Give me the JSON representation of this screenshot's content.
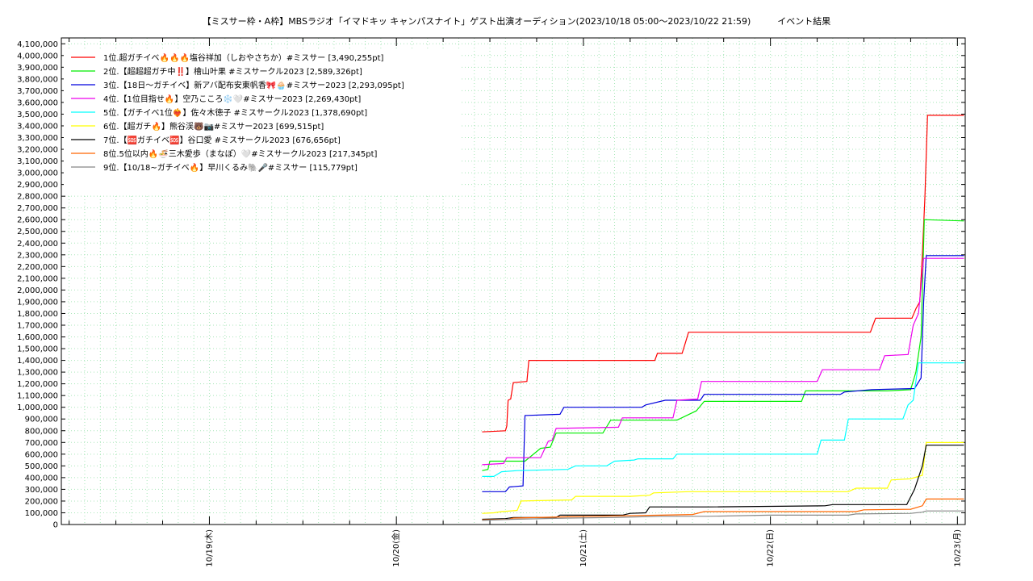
{
  "chart_data": {
    "type": "line",
    "title": "【ミスサー枠・A枠】MBSラジオ「イマドキッ キャンパスナイト」ゲスト出演オーディション(2023/10/18 05:00〜2023/10/22 21:59)　　　イベント結果",
    "xlabel": "",
    "ylabel": "",
    "x_ticks": [
      "10/19(木)",
      "10/20(金)",
      "10/21(土)",
      "10/22(日)",
      "10/23(月)"
    ],
    "x_range": [
      "2023-10-18 05:00",
      "2023-10-23 01:00"
    ],
    "ylim": [
      0,
      4150000
    ],
    "y_ticks": [
      0,
      100000,
      200000,
      300000,
      400000,
      500000,
      600000,
      700000,
      800000,
      900000,
      1000000,
      1100000,
      1200000,
      1300000,
      1400000,
      1500000,
      1600000,
      1700000,
      1800000,
      1900000,
      2000000,
      2100000,
      2200000,
      2300000,
      2400000,
      2500000,
      2600000,
      2700000,
      2800000,
      2900000,
      3000000,
      3100000,
      3200000,
      3300000,
      3400000,
      3500000,
      3600000,
      3700000,
      3800000,
      3900000,
      4000000,
      4100000
    ],
    "y_tick_labels": [
      "0",
      "100,000",
      "200,000",
      "300,000",
      "400,000",
      "500,000",
      "600,000",
      "700,000",
      "800,000",
      "900,000",
      "1,000,000",
      "1,100,000",
      "1,200,000",
      "1,300,000",
      "1,400,000",
      "1,500,000",
      "1,600,000",
      "1,700,000",
      "1,800,000",
      "1,900,000",
      "2,000,000",
      "2,100,000",
      "2,200,000",
      "2,300,000",
      "2,400,000",
      "2,500,000",
      "2,600,000",
      "2,700,000",
      "2,800,000",
      "2,900,000",
      "3,000,000",
      "3,100,000",
      "3,200,000",
      "3,300,000",
      "3,400,000",
      "3,500,000",
      "3,600,000",
      "3,700,000",
      "3,800,000",
      "3,900,000",
      "4,000,000",
      "4,100,000"
    ],
    "grid": true,
    "legend_position": "top-left",
    "series": [
      {
        "name": "1位.超ガチイベ🔥🔥🔥塩谷祥加（しおやさちか）#ミスサー [3,490,255pt]",
        "color": "#ff0000",
        "points": [
          [
            "2023-10-20 11:00",
            790000
          ],
          [
            "2023-10-20 14:00",
            800000
          ],
          [
            "2023-10-20 14:10",
            840000
          ],
          [
            "2023-10-20 14:20",
            1060000
          ],
          [
            "2023-10-20 14:40",
            1070000
          ],
          [
            "2023-10-20 15:00",
            1210000
          ],
          [
            "2023-10-20 16:45",
            1220000
          ],
          [
            "2023-10-20 17:00",
            1400000
          ],
          [
            "2023-10-21 04:00",
            1400000
          ],
          [
            "2023-10-21 09:10",
            1400000
          ],
          [
            "2023-10-21 09:30",
            1460000
          ],
          [
            "2023-10-21 12:40",
            1460000
          ],
          [
            "2023-10-21 13:00",
            1530000
          ],
          [
            "2023-10-21 13:30",
            1640000
          ],
          [
            "2023-10-22 12:50",
            1640000
          ],
          [
            "2023-10-22 13:10",
            1700000
          ],
          [
            "2023-10-22 13:30",
            1760000
          ],
          [
            "2023-10-22 18:10",
            1760000
          ],
          [
            "2023-10-22 18:40",
            1840000
          ],
          [
            "2023-10-22 19:10",
            1900000
          ],
          [
            "2023-10-22 19:30",
            2300000
          ],
          [
            "2023-10-22 19:50",
            2800000
          ],
          [
            "2023-10-22 20:10",
            3490255
          ],
          [
            "2023-10-23 00:50",
            3490255
          ]
        ]
      },
      {
        "name": "2位.【超超超ガチ中‼️】檜山叶果 #ミスサークル2023 [2,589,326pt]",
        "color": "#00ee00",
        "points": [
          [
            "2023-10-20 11:00",
            460000
          ],
          [
            "2023-10-20 11:45",
            470000
          ],
          [
            "2023-10-20 12:00",
            540000
          ],
          [
            "2023-10-20 16:30",
            540000
          ],
          [
            "2023-10-20 18:30",
            650000
          ],
          [
            "2023-10-20 19:45",
            660000
          ],
          [
            "2023-10-20 20:30",
            780000
          ],
          [
            "2023-10-21 02:30",
            780000
          ],
          [
            "2023-10-21 03:30",
            890000
          ],
          [
            "2023-10-21 12:00",
            890000
          ],
          [
            "2023-10-21 14:30",
            970000
          ],
          [
            "2023-10-21 15:30",
            1050000
          ],
          [
            "2023-10-22 04:00",
            1050000
          ],
          [
            "2023-10-22 04:30",
            1140000
          ],
          [
            "2023-10-22 15:00",
            1140000
          ],
          [
            "2023-10-22 18:00",
            1150000
          ],
          [
            "2023-10-22 18:40",
            1300000
          ],
          [
            "2023-10-22 19:20",
            1600000
          ],
          [
            "2023-10-22 19:45",
            2600000
          ],
          [
            "2023-10-23 00:50",
            2589326
          ]
        ]
      },
      {
        "name": "3位.【18日〜ガチイベ】新アバ配布安東帆香🎀🧁#ミスサー2023 [2,293,095pt]",
        "color": "#0000dd",
        "points": [
          [
            "2023-10-20 11:00",
            280000
          ],
          [
            "2023-10-20 14:00",
            280000
          ],
          [
            "2023-10-20 14:30",
            320000
          ],
          [
            "2023-10-20 16:15",
            330000
          ],
          [
            "2023-10-20 16:30",
            930000
          ],
          [
            "2023-10-20 21:00",
            940000
          ],
          [
            "2023-10-20 21:30",
            1000000
          ],
          [
            "2023-10-21 07:30",
            1000000
          ],
          [
            "2023-10-21 08:00",
            1020000
          ],
          [
            "2023-10-21 10:30",
            1060000
          ],
          [
            "2023-10-21 15:00",
            1060000
          ],
          [
            "2023-10-21 15:30",
            1110000
          ],
          [
            "2023-10-22 09:00",
            1110000
          ],
          [
            "2023-10-22 09:30",
            1130000
          ],
          [
            "2023-10-22 13:00",
            1150000
          ],
          [
            "2023-10-22 18:30",
            1160000
          ],
          [
            "2023-10-22 19:20",
            1250000
          ],
          [
            "2023-10-22 19:40",
            1900000
          ],
          [
            "2023-10-22 20:00",
            2293095
          ],
          [
            "2023-10-23 00:50",
            2293095
          ]
        ]
      },
      {
        "name": "4位.【1位目指せ🔥】空乃こころ❄️🤍#ミスサー2023 [2,269,430pt]",
        "color": "#ee00ee",
        "points": [
          [
            "2023-10-20 11:00",
            510000
          ],
          [
            "2023-10-20 13:45",
            520000
          ],
          [
            "2023-10-20 14:10",
            570000
          ],
          [
            "2023-10-20 18:30",
            570000
          ],
          [
            "2023-10-20 19:30",
            710000
          ],
          [
            "2023-10-20 20:00",
            720000
          ],
          [
            "2023-10-20 20:30",
            820000
          ],
          [
            "2023-10-21 04:30",
            830000
          ],
          [
            "2023-10-21 05:00",
            910000
          ],
          [
            "2023-10-21 11:30",
            910000
          ],
          [
            "2023-10-21 12:00",
            1060000
          ],
          [
            "2023-10-21 14:40",
            1070000
          ],
          [
            "2023-10-21 15:10",
            1220000
          ],
          [
            "2023-10-22 06:00",
            1220000
          ],
          [
            "2023-10-22 06:40",
            1320000
          ],
          [
            "2023-10-22 14:00",
            1320000
          ],
          [
            "2023-10-22 14:20",
            1380000
          ],
          [
            "2023-10-22 14:40",
            1440000
          ],
          [
            "2023-10-22 17:40",
            1450000
          ],
          [
            "2023-10-22 18:20",
            1700000
          ],
          [
            "2023-10-22 19:00",
            1800000
          ],
          [
            "2023-10-22 19:40",
            2269430
          ],
          [
            "2023-10-23 00:50",
            2269430
          ]
        ]
      },
      {
        "name": "5位.【ガチイベ1位❤️‍🔥】佐々木徳子 #ミスサークル2023 [1,378,690pt]",
        "color": "#00ffff",
        "points": [
          [
            "2023-10-20 11:00",
            410000
          ],
          [
            "2023-10-20 12:30",
            410000
          ],
          [
            "2023-10-20 13:30",
            450000
          ],
          [
            "2023-10-20 15:30",
            460000
          ],
          [
            "2023-10-20 22:00",
            470000
          ],
          [
            "2023-10-20 23:00",
            500000
          ],
          [
            "2023-10-21 03:00",
            500000
          ],
          [
            "2023-10-21 04:00",
            540000
          ],
          [
            "2023-10-21 06:30",
            550000
          ],
          [
            "2023-10-21 07:00",
            560000
          ],
          [
            "2023-10-21 11:30",
            560000
          ],
          [
            "2023-10-21 12:00",
            600000
          ],
          [
            "2023-10-22 06:00",
            600000
          ],
          [
            "2023-10-22 06:30",
            720000
          ],
          [
            "2023-10-22 09:30",
            720000
          ],
          [
            "2023-10-22 10:00",
            900000
          ],
          [
            "2023-10-22 17:00",
            900000
          ],
          [
            "2023-10-22 17:40",
            1020000
          ],
          [
            "2023-10-22 18:20",
            1060000
          ],
          [
            "2023-10-22 19:00",
            1378690
          ],
          [
            "2023-10-23 00:50",
            1378690
          ]
        ]
      },
      {
        "name": "6位.【超ガチ🔥】熊谷渓🐻📷#ミスサー2023 [699,515pt]",
        "color": "#ffff00",
        "points": [
          [
            "2023-10-20 11:00",
            95000
          ],
          [
            "2023-10-20 12:30",
            100000
          ],
          [
            "2023-10-20 13:30",
            110000
          ],
          [
            "2023-10-20 15:30",
            120000
          ],
          [
            "2023-10-20 16:00",
            200000
          ],
          [
            "2023-10-20 22:30",
            210000
          ],
          [
            "2023-10-20 23:00",
            240000
          ],
          [
            "2023-10-21 06:00",
            240000
          ],
          [
            "2023-10-21 08:30",
            250000
          ],
          [
            "2023-10-21 09:00",
            270000
          ],
          [
            "2023-10-21 13:30",
            280000
          ],
          [
            "2023-10-22 10:00",
            280000
          ],
          [
            "2023-10-22 11:00",
            310000
          ],
          [
            "2023-10-22 15:00",
            310000
          ],
          [
            "2023-10-22 15:30",
            380000
          ],
          [
            "2023-10-22 18:00",
            390000
          ],
          [
            "2023-10-22 19:30",
            420000
          ],
          [
            "2023-10-22 20:00",
            699515
          ],
          [
            "2023-10-23 00:50",
            699515
          ]
        ]
      },
      {
        "name": "7位.【🆘ガチイベ🆘】谷口愛 #ミスサークル2023 [676,656pt]",
        "color": "#000000",
        "points": [
          [
            "2023-10-20 11:00",
            45000
          ],
          [
            "2023-10-20 14:00",
            50000
          ],
          [
            "2023-10-20 15:00",
            60000
          ],
          [
            "2023-10-20 20:30",
            60000
          ],
          [
            "2023-10-20 21:00",
            80000
          ],
          [
            "2023-10-21 05:00",
            80000
          ],
          [
            "2023-10-21 06:00",
            95000
          ],
          [
            "2023-10-21 08:00",
            100000
          ],
          [
            "2023-10-21 08:30",
            150000
          ],
          [
            "2023-10-21 16:00",
            150000
          ],
          [
            "2023-10-22 07:00",
            160000
          ],
          [
            "2023-10-22 08:00",
            170000
          ],
          [
            "2023-10-22 17:30",
            170000
          ],
          [
            "2023-10-22 18:30",
            300000
          ],
          [
            "2023-10-22 19:30",
            500000
          ],
          [
            "2023-10-22 20:00",
            676656
          ],
          [
            "2023-10-23 00:50",
            676656
          ]
        ]
      },
      {
        "name": "8位.5位以内🔥🍜三木愛歩（まなぽ）🤍#ミスサークル2023 [217,345pt]",
        "color": "#ff6600",
        "points": [
          [
            "2023-10-20 11:00",
            40000
          ],
          [
            "2023-10-20 14:30",
            45000
          ],
          [
            "2023-10-20 15:00",
            55000
          ],
          [
            "2023-10-20 21:00",
            65000
          ],
          [
            "2023-10-21 01:00",
            70000
          ],
          [
            "2023-10-21 10:00",
            80000
          ],
          [
            "2023-10-21 14:00",
            85000
          ],
          [
            "2023-10-21 15:30",
            110000
          ],
          [
            "2023-10-22 11:00",
            110000
          ],
          [
            "2023-10-22 12:00",
            125000
          ],
          [
            "2023-10-22 18:00",
            130000
          ],
          [
            "2023-10-22 19:30",
            160000
          ],
          [
            "2023-10-22 20:00",
            217345
          ],
          [
            "2023-10-23 00:50",
            217345
          ]
        ]
      },
      {
        "name": "9位.【10/18~ガチイベ🔥】早川くるみ🐘🎤#ミスサー [115,779pt]",
        "color": "#888888",
        "points": [
          [
            "2023-10-20 11:00",
            35000
          ],
          [
            "2023-10-20 15:00",
            45000
          ],
          [
            "2023-10-20 22:00",
            55000
          ],
          [
            "2023-10-21 04:00",
            60000
          ],
          [
            "2023-10-21 10:00",
            70000
          ],
          [
            "2023-10-21 16:00",
            70000
          ],
          [
            "2023-10-22 00:00",
            80000
          ],
          [
            "2023-10-22 10:00",
            80000
          ],
          [
            "2023-10-22 11:00",
            90000
          ],
          [
            "2023-10-22 18:00",
            95000
          ],
          [
            "2023-10-22 19:30",
            105000
          ],
          [
            "2023-10-22 20:00",
            115779
          ],
          [
            "2023-10-23 00:50",
            115779
          ]
        ]
      }
    ]
  }
}
